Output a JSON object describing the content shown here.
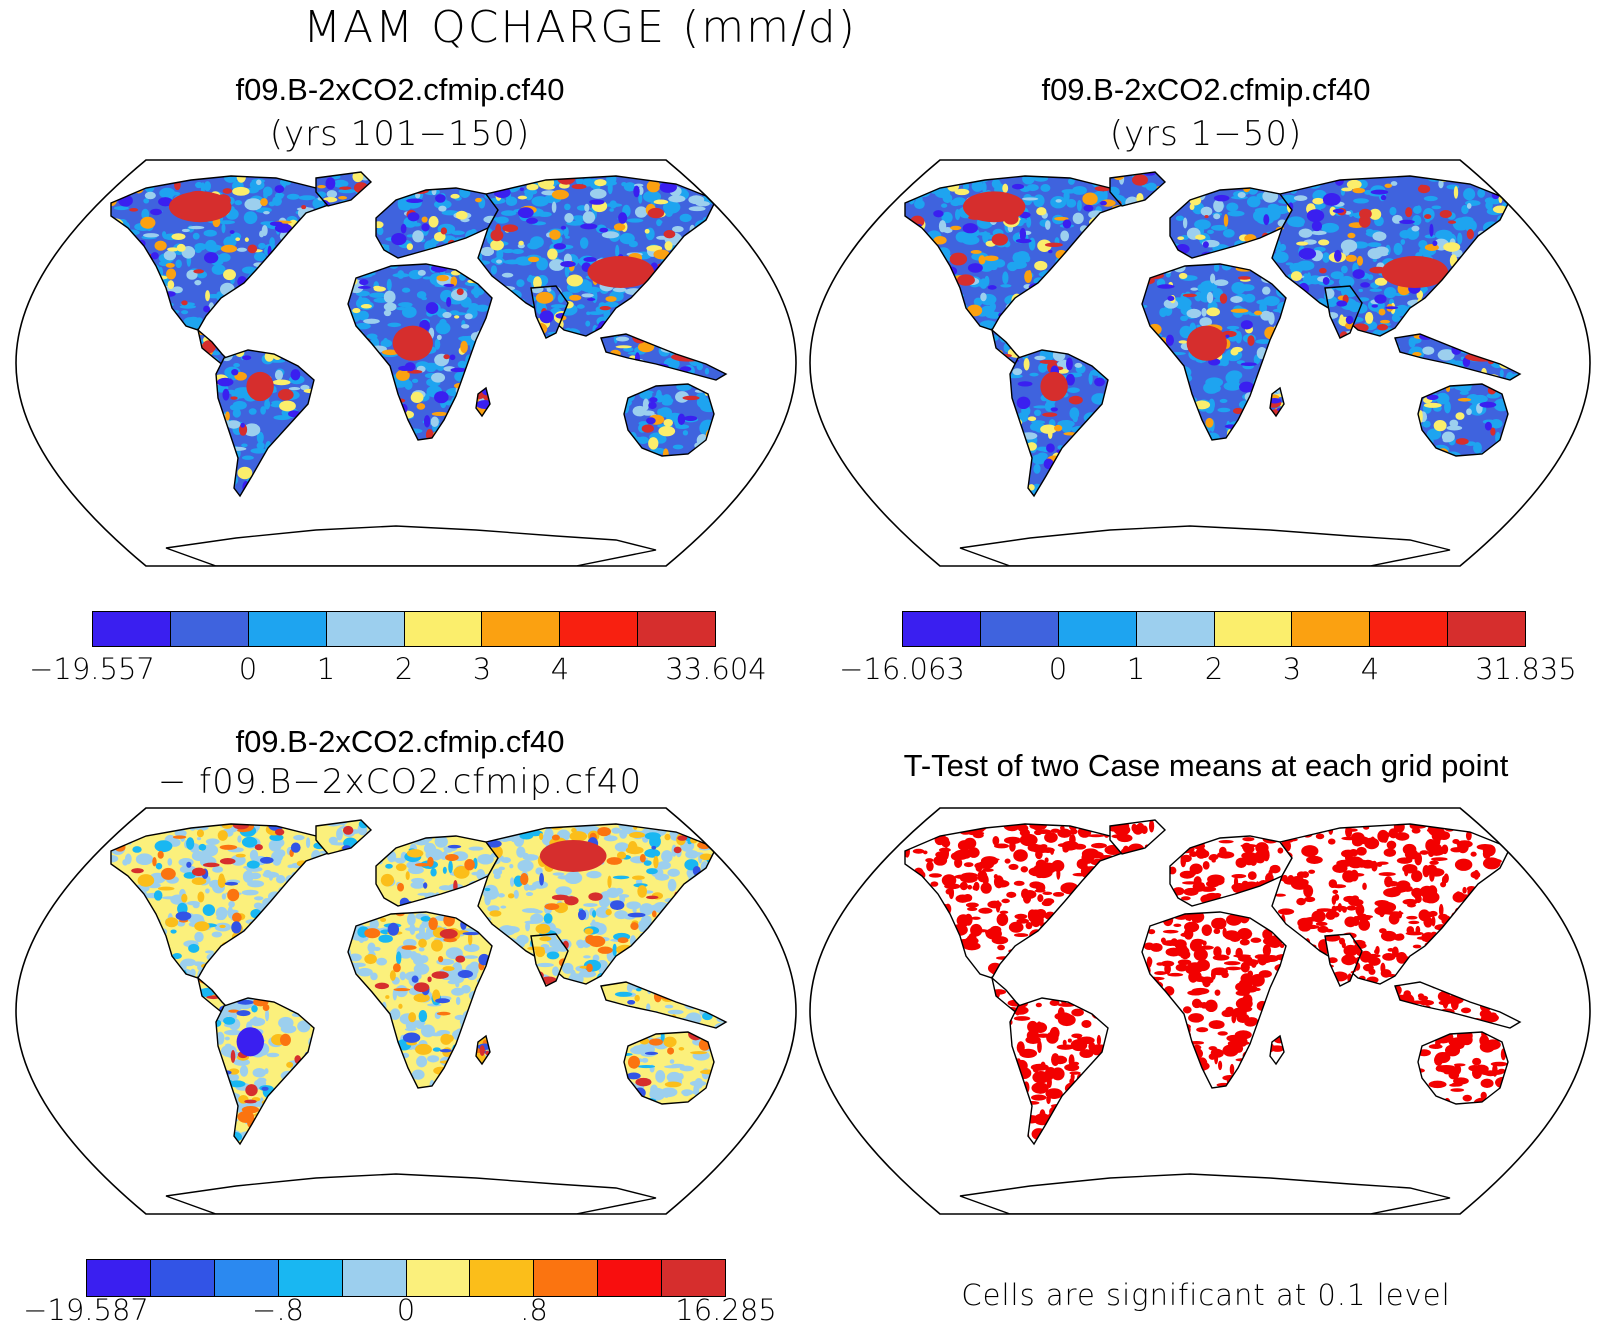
{
  "title": "MAM QCHARGE (mm/d)",
  "panels": [
    {
      "id": "top-left",
      "title": "f09.B-2xCO2.cfmip.cf40",
      "subtitle": "(yrs 101−150)",
      "colorbar": {
        "colors": [
          "#3a1ff0",
          "#3f63de",
          "#1ea4f0",
          "#9ccfee",
          "#fbee6c",
          "#fba111",
          "#f82010",
          "#d62e2d"
        ],
        "labels": [
          "−19.557",
          "0",
          "1",
          "2",
          "3",
          "4",
          "33.604"
        ],
        "label_positions": [
          0,
          2,
          3,
          4,
          5,
          6,
          8
        ]
      }
    },
    {
      "id": "top-right",
      "title": "f09.B-2xCO2.cfmip.cf40",
      "subtitle": "(yrs 1−50)",
      "colorbar": {
        "colors": [
          "#3a1ff0",
          "#3f63de",
          "#1ea4f0",
          "#9ccfee",
          "#fbee6c",
          "#fba111",
          "#f82010",
          "#d62e2d"
        ],
        "labels": [
          "−16.063",
          "0",
          "1",
          "2",
          "3",
          "4",
          "31.835"
        ],
        "label_positions": [
          0,
          2,
          3,
          4,
          5,
          6,
          8
        ]
      }
    },
    {
      "id": "bottom-left",
      "title": "f09.B-2xCO2.cfmip.cf40",
      "subtitle": "−  f09.B−2xCO2.cfmip.cf40",
      "colorbar": {
        "colors": [
          "#3a1ff0",
          "#3254e6",
          "#2b89f0",
          "#19b7f2",
          "#9ccfee",
          "#fbf07c",
          "#fbbe1a",
          "#fb7410",
          "#f80e0e",
          "#d62e2d"
        ],
        "labels": [
          "−19.587",
          "−.8",
          "0",
          ".8",
          "16.285"
        ],
        "label_positions": [
          0,
          3,
          5,
          7,
          10
        ]
      }
    },
    {
      "id": "bottom-right",
      "title": "T-Test of two Case means at each grid point",
      "note": "Cells are significant at 0.1 level",
      "sig_color": "#f20000"
    }
  ],
  "colors": {
    "land_outline": "#000000",
    "frame": "#000000",
    "background": "#ffffff"
  }
}
